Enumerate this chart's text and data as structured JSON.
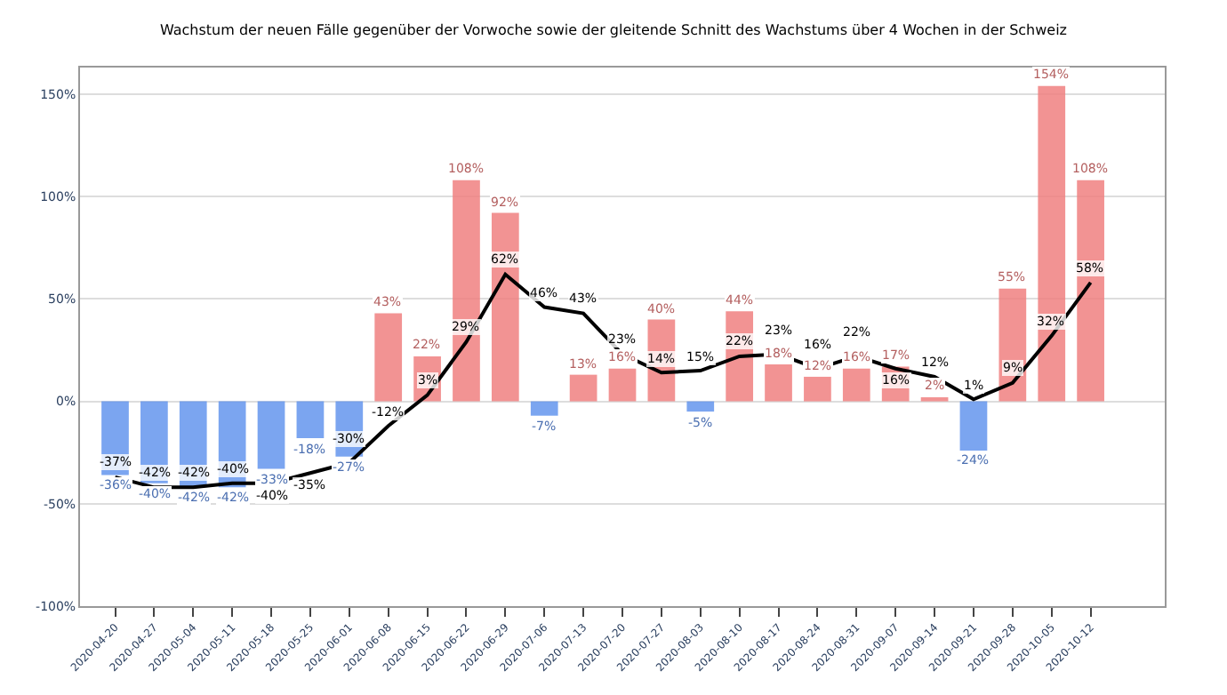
{
  "chart_data": {
    "type": "bar",
    "title": "Wachstum der neuen Fälle gegenüber der Vorwoche sowie der gleitende Schnitt des Wachstums über 4 Wochen in der Schweiz",
    "categories": [
      "2020-04-20",
      "2020-04-27",
      "2020-05-04",
      "2020-05-11",
      "2020-05-18",
      "2020-05-25",
      "2020-06-01",
      "2020-06-08",
      "2020-06-15",
      "2020-06-22",
      "2020-06-29",
      "2020-07-06",
      "2020-07-13",
      "2020-07-20",
      "2020-07-27",
      "2020-08-03",
      "2020-08-10",
      "2020-08-17",
      "2020-08-24",
      "2020-08-31",
      "2020-09-07",
      "2020-09-14",
      "2020-09-21",
      "2020-09-28",
      "2020-10-05",
      "2020-10-12"
    ],
    "series": [
      {
        "values": [
          -36,
          -40,
          -42,
          -42,
          -33,
          -18,
          -27,
          43,
          22,
          108,
          92,
          -7,
          13,
          16,
          40,
          -5,
          44,
          18,
          12,
          16,
          17,
          2,
          -24,
          55,
          154,
          108
        ],
        "colors": [
          "#6495ed",
          "#6495ed",
          "#6495ed",
          "#6495ed",
          "#6495ed",
          "#6495ed",
          "#6495ed",
          "#f08080",
          "#f08080",
          "#f08080",
          "#f08080",
          "#6495ed",
          "#f08080",
          "#f08080",
          "#f08080",
          "#6495ed",
          "#f08080",
          "#f08080",
          "#f08080",
          "#f08080",
          "#f08080",
          "#f08080",
          "#6495ed",
          "#f08080",
          "#f08080",
          "#f08080"
        ],
        "value_labels": [
          "-36%",
          "-40%",
          "-42%",
          "-42%",
          "-33%",
          "-18%",
          "-27%",
          "43%",
          "22%",
          "108%",
          "92%",
          "-7%",
          "13%",
          "16%",
          "40%",
          "-5%",
          "44%",
          "18%",
          "12%",
          "16%",
          "17%",
          "2%",
          "-24%",
          "55%",
          "154%",
          "108%"
        ]
      },
      {
        "type": "line",
        "color": "#000000",
        "values": [
          -37,
          -42,
          -42,
          -40,
          -40,
          -35,
          -30,
          -12,
          3,
          29,
          62,
          46,
          43,
          23,
          14,
          15,
          22,
          23,
          16,
          22,
          16,
          12,
          1,
          9,
          32,
          58
        ],
        "value_labels": [
          "-37%",
          "-42%",
          "-42%",
          "-40%",
          "-40%",
          "-35%",
          "-30%",
          "-12%",
          "3%",
          "29%",
          "62%",
          "46%",
          "43%",
          "23%",
          "14%",
          "15%",
          "22%",
          "23%",
          "16%",
          "22%",
          "16%",
          "12%",
          "1%",
          "9%",
          "32%",
          "58%"
        ]
      }
    ],
    "ylim": [
      -100,
      163
    ],
    "yticks": [
      {
        "value": -100,
        "label": "-100%"
      },
      {
        "value": -50,
        "label": "-50%"
      },
      {
        "value": 0,
        "label": "0%"
      },
      {
        "value": 50,
        "label": "50%"
      },
      {
        "value": 100,
        "label": "100%"
      },
      {
        "value": 150,
        "label": "150%"
      }
    ],
    "grid": "y",
    "marker": "none",
    "line_style": "solid"
  }
}
